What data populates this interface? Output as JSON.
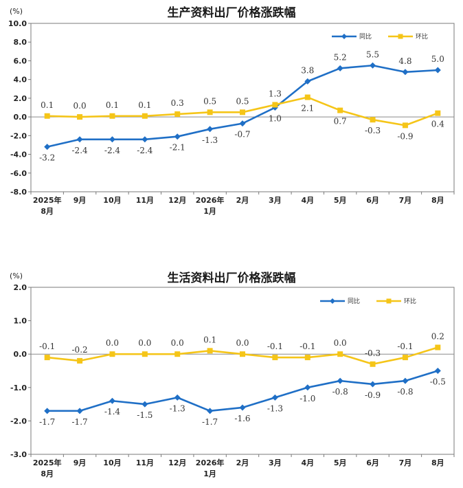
{
  "chart_data": [
    {
      "type": "line",
      "title": "生产资料出厂价格涨跌幅",
      "unit": "(%)",
      "categories": [
        [
          "2025年",
          "8月"
        ],
        [
          "9月"
        ],
        [
          "10月"
        ],
        [
          "11月"
        ],
        [
          "12月"
        ],
        [
          "2026年",
          "1月"
        ],
        [
          "2月"
        ],
        [
          "3月"
        ],
        [
          "4月"
        ],
        [
          "5月"
        ],
        [
          "6月"
        ],
        [
          "7月"
        ],
        [
          "8月"
        ]
      ],
      "ylim": [
        -8.0,
        10.0
      ],
      "yticks": [
        "10.0",
        "8.0",
        "6.0",
        "4.0",
        "2.0",
        "0.0",
        "-2.0",
        "-4.0",
        "-6.0",
        "-8.0"
      ],
      "ytick_values": [
        10,
        8,
        6,
        4,
        2,
        0,
        -2,
        -4,
        -6,
        -8
      ],
      "legend_position": "top-right",
      "series": [
        {
          "name": "同比",
          "color": "#1f6fc6",
          "marker": "diamond",
          "values": [
            -3.2,
            -2.4,
            -2.4,
            -2.4,
            -2.1,
            -1.3,
            -0.7,
            1.0,
            3.8,
            5.2,
            5.5,
            4.8,
            5.0
          ],
          "labels": [
            "-3.2",
            "-2.4",
            "-2.4",
            "-2.4",
            "-2.1",
            "-1.3",
            "-0.7",
            "1.0",
            "3.8",
            "5.2",
            "5.5",
            "4.8",
            "5.0"
          ],
          "label_side": [
            "below",
            "below",
            "below",
            "below",
            "below",
            "below",
            "below",
            "below",
            "above",
            "above",
            "above",
            "above",
            "above"
          ]
        },
        {
          "name": "环比",
          "color": "#f5c518",
          "marker": "square",
          "values": [
            0.1,
            0.0,
            0.1,
            0.1,
            0.3,
            0.5,
            0.5,
            1.3,
            2.1,
            0.7,
            -0.3,
            -0.9,
            0.4
          ],
          "labels": [
            "0.1",
            "0.0",
            "0.1",
            "0.1",
            "0.3",
            "0.5",
            "0.5",
            "1.3",
            "2.1",
            "0.7",
            "-0.3",
            "-0.9",
            "0.4"
          ],
          "label_side": [
            "above",
            "above",
            "above",
            "above",
            "above",
            "above",
            "above",
            "above",
            "below",
            "below",
            "below",
            "below",
            "below"
          ]
        }
      ]
    },
    {
      "type": "line",
      "title": "生活资料出厂价格涨跌幅",
      "unit": "(%)",
      "categories": [
        [
          "2025年",
          "8月"
        ],
        [
          "9月"
        ],
        [
          "10月"
        ],
        [
          "11月"
        ],
        [
          "12月"
        ],
        [
          "2026年",
          "1月"
        ],
        [
          "2月"
        ],
        [
          "3月"
        ],
        [
          "4月"
        ],
        [
          "5月"
        ],
        [
          "6月"
        ],
        [
          "7月"
        ],
        [
          "8月"
        ]
      ],
      "ylim": [
        -3.0,
        2.0
      ],
      "yticks": [
        "2.0",
        "1.0",
        "0.0",
        "-1.0",
        "-2.0",
        "-3.0"
      ],
      "ytick_values": [
        2,
        1,
        0,
        -1,
        -2,
        -3
      ],
      "legend_position": "top-right",
      "series": [
        {
          "name": "同比",
          "color": "#1f6fc6",
          "marker": "diamond",
          "values": [
            -1.7,
            -1.7,
            -1.4,
            -1.5,
            -1.3,
            -1.7,
            -1.6,
            -1.3,
            -1.0,
            -0.8,
            -0.9,
            -0.8,
            -0.5
          ],
          "labels": [
            "-1.7",
            "-1.7",
            "-1.4",
            "-1.5",
            "-1.3",
            "-1.7",
            "-1.6",
            "-1.3",
            "-1.0",
            "-0.8",
            "-0.9",
            "-0.8",
            "-0.5"
          ],
          "label_side": [
            "below",
            "below",
            "below",
            "below",
            "below",
            "below",
            "below",
            "below",
            "below",
            "below",
            "below",
            "below",
            "below"
          ]
        },
        {
          "name": "环比",
          "color": "#f5c518",
          "marker": "square",
          "values": [
            -0.1,
            -0.2,
            0.0,
            0.0,
            0.0,
            0.1,
            0.0,
            -0.1,
            -0.1,
            0.0,
            -0.3,
            -0.1,
            0.2
          ],
          "labels": [
            "-0.1",
            "-0.2",
            "0.0",
            "0.0",
            "0.0",
            "0.1",
            "0.0",
            "-0.1",
            "-0.1",
            "0.0",
            "-0.3",
            "-0.1",
            "0.2"
          ],
          "label_side": [
            "above",
            "above",
            "above",
            "above",
            "above",
            "above",
            "above",
            "above",
            "above",
            "above",
            "above",
            "above",
            "above"
          ]
        }
      ]
    }
  ]
}
